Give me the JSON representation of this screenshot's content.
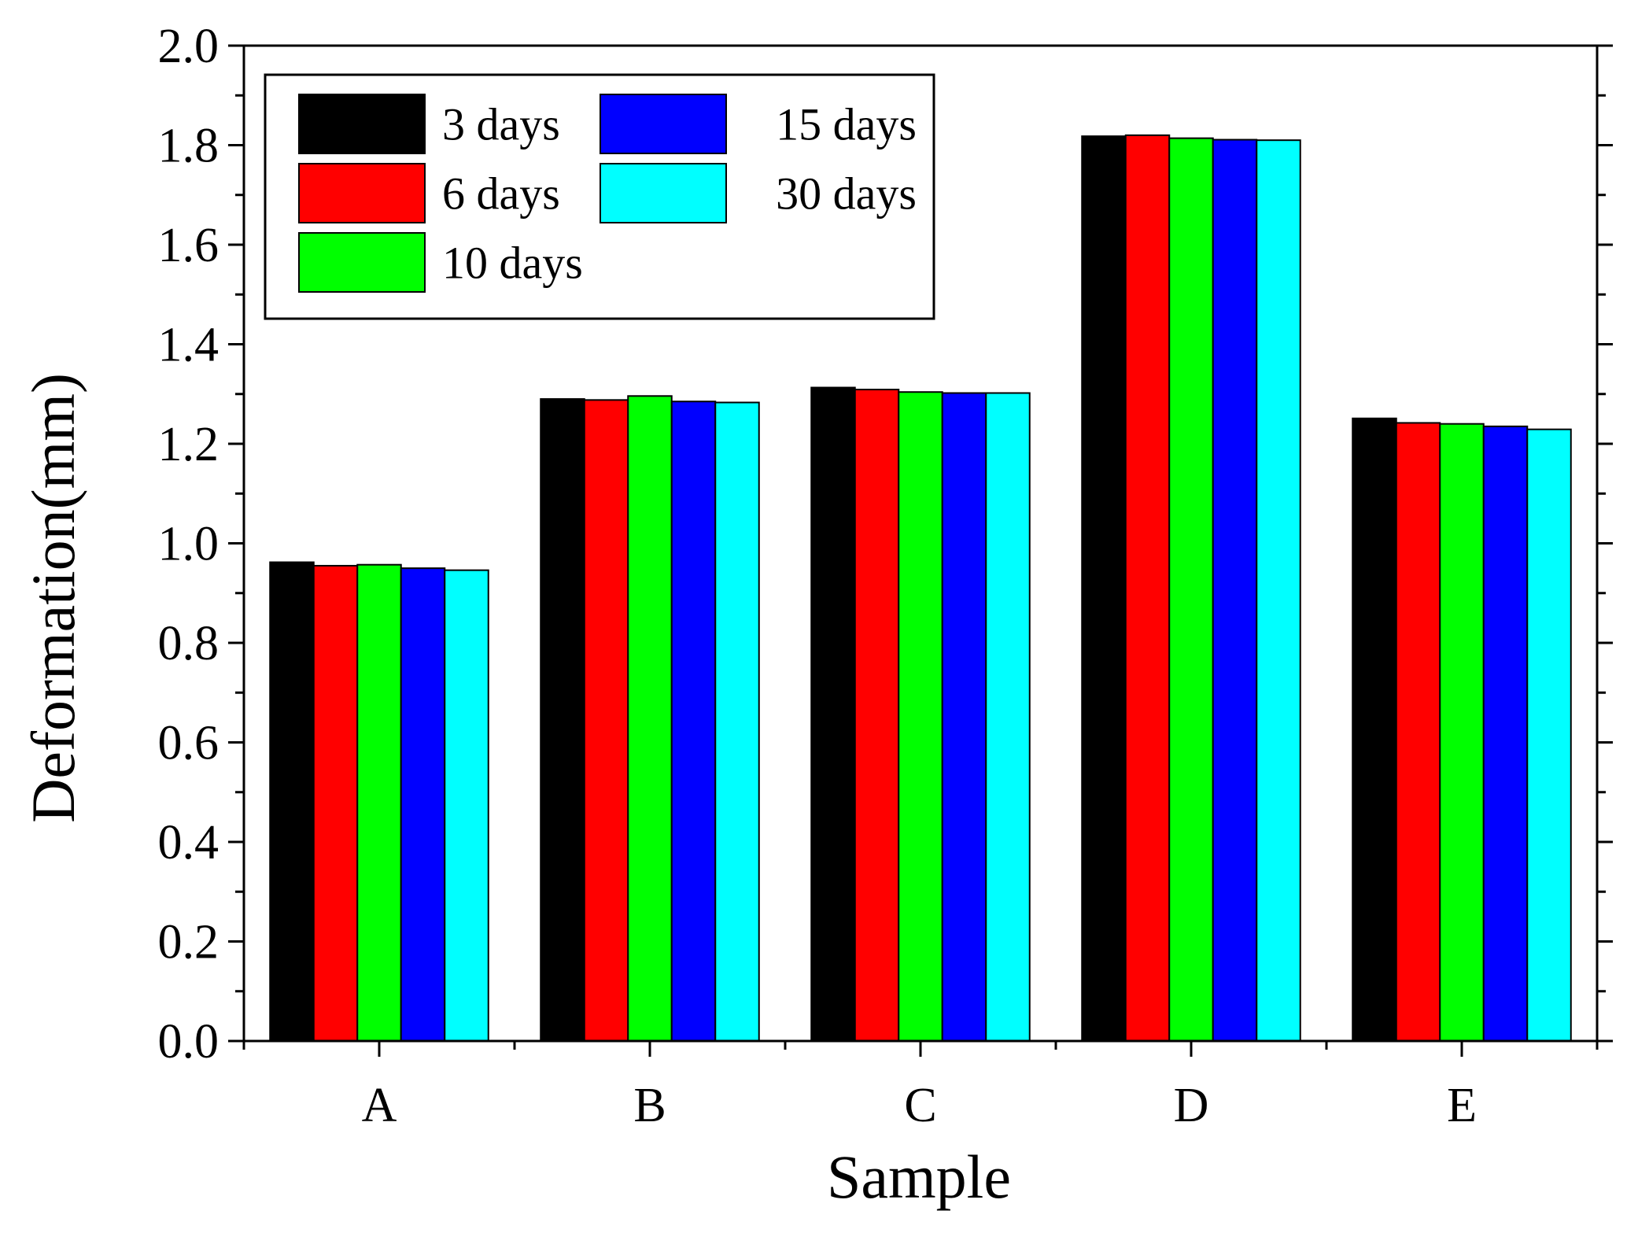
{
  "chart_data": {
    "type": "bar",
    "title": "",
    "xlabel": "Sample",
    "ylabel": "Deformation(mm)",
    "categories": [
      "A",
      "B",
      "C",
      "D",
      "E"
    ],
    "ylim": [
      0,
      2.0
    ],
    "yticks": [
      "0.0",
      "0.2",
      "0.4",
      "0.6",
      "0.8",
      "1.0",
      "1.2",
      "1.4",
      "1.6",
      "1.8",
      "2.0"
    ],
    "grid": false,
    "legend_position": "top-left",
    "series": [
      {
        "name": "3 days",
        "color": "#000000",
        "values": [
          0.962,
          1.29,
          1.313,
          1.818,
          1.251
        ]
      },
      {
        "name": "6 days",
        "color": "#ff0000",
        "values": [
          0.955,
          1.288,
          1.309,
          1.82,
          1.242
        ]
      },
      {
        "name": "10 days",
        "color": "#00ff00",
        "values": [
          0.957,
          1.296,
          1.304,
          1.814,
          1.24
        ]
      },
      {
        "name": "15 days",
        "color": "#0000ff",
        "values": [
          0.95,
          1.285,
          1.302,
          1.811,
          1.235
        ]
      },
      {
        "name": "30 days",
        "color": "#00ffff",
        "values": [
          0.946,
          1.283,
          1.302,
          1.81,
          1.229
        ]
      }
    ]
  }
}
